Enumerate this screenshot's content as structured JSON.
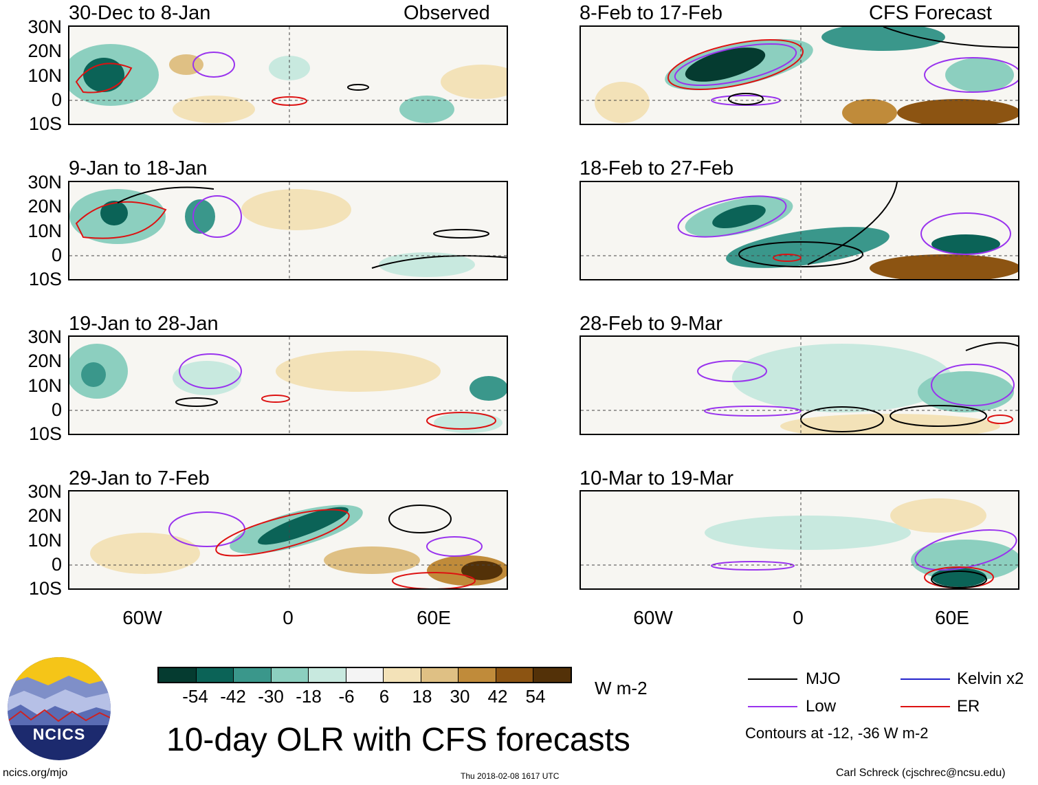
{
  "panels": {
    "observed_header": "Observed",
    "forecast_header": "CFS Forecast",
    "left": [
      "30-Dec to 8-Jan",
      "9-Jan to 18-Jan",
      "19-Jan to 28-Jan",
      "29-Jan to 7-Feb"
    ],
    "right": [
      "8-Feb to 17-Feb",
      "18-Feb to 27-Feb",
      "28-Feb to 9-Mar",
      "10-Mar to 19-Mar"
    ]
  },
  "axes": {
    "lat_labels": [
      "30N",
      "20N",
      "10N",
      "0",
      "10S"
    ],
    "lon_labels": [
      "60W",
      "0",
      "60E"
    ]
  },
  "colorbar": {
    "labels": [
      "-54",
      "-42",
      "-30",
      "-18",
      "-6",
      "6",
      "18",
      "30",
      "42",
      "54"
    ],
    "colors": [
      "#053b30",
      "#0b6357",
      "#3a978b",
      "#8ccfbf",
      "#c8e9df",
      "#f4f4f4",
      "#f3e2b8",
      "#dfc084",
      "#c08b3a",
      "#8c5412",
      "#533108"
    ],
    "unit": "W m-2"
  },
  "legend": {
    "mjo": "MJO",
    "kelvin": "Kelvin x2",
    "low": "Low",
    "er": "ER",
    "contours": "Contours at -12, -36 W m-2",
    "colors": {
      "mjo": "#000000",
      "kelvin": "#2222cc",
      "low": "#9933ee",
      "er": "#dd1111"
    }
  },
  "logo": {
    "text": "NCICS"
  },
  "title": "10-day OLR with CFS forecasts",
  "footer": {
    "url": "ncics.org/mjo",
    "timestamp": "Thu 2018-02-08 1617 UTC",
    "author": "Carl Schreck (cjschrec@ncsu.edu)"
  }
}
